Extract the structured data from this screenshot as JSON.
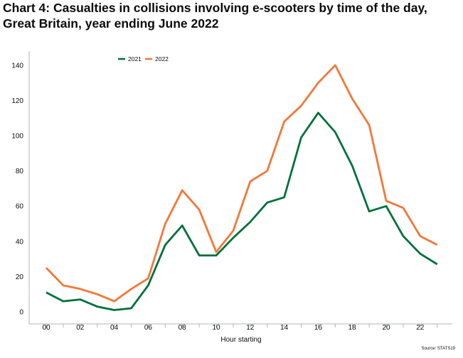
{
  "page": {
    "title": "Chart 4: Casualties in collisions involving e-scooters by time of the day, Great Britain, year ending June 2022",
    "source": "Source: STATS19"
  },
  "chart_data": {
    "type": "line",
    "title": "Chart 4: Casualties in collisions involving e-scooters by time of the day, Great Britain, year ending June 2022",
    "xlabel": "Hour starting",
    "ylabel": "",
    "x": [
      "00",
      "01",
      "02",
      "03",
      "04",
      "05",
      "06",
      "07",
      "08",
      "09",
      "10",
      "11",
      "12",
      "13",
      "14",
      "15",
      "16",
      "17",
      "18",
      "19",
      "20",
      "21",
      "22",
      "23"
    ],
    "x_tick_labels": [
      "00",
      "02",
      "04",
      "06",
      "08",
      "10",
      "12",
      "14",
      "16",
      "18",
      "20",
      "22"
    ],
    "y_ticks": [
      0,
      20,
      40,
      60,
      80,
      100,
      120,
      140
    ],
    "ylim": [
      -5,
      150
    ],
    "grid": false,
    "legend_position": "top-left",
    "series": [
      {
        "name": "2021",
        "color": "#00703c",
        "values": [
          11,
          6,
          7,
          3,
          1,
          2,
          15,
          38,
          49,
          32,
          32,
          42,
          51,
          62,
          65,
          99,
          113,
          102,
          83,
          57,
          60,
          43,
          33,
          27
        ]
      },
      {
        "name": "2022",
        "color": "#f47738",
        "values": [
          25,
          15,
          13,
          10,
          6,
          13,
          19,
          50,
          69,
          58,
          34,
          46,
          74,
          80,
          108,
          117,
          130,
          140,
          121,
          106,
          63,
          59,
          43,
          38
        ]
      }
    ],
    "source": "Source: STATS19"
  }
}
